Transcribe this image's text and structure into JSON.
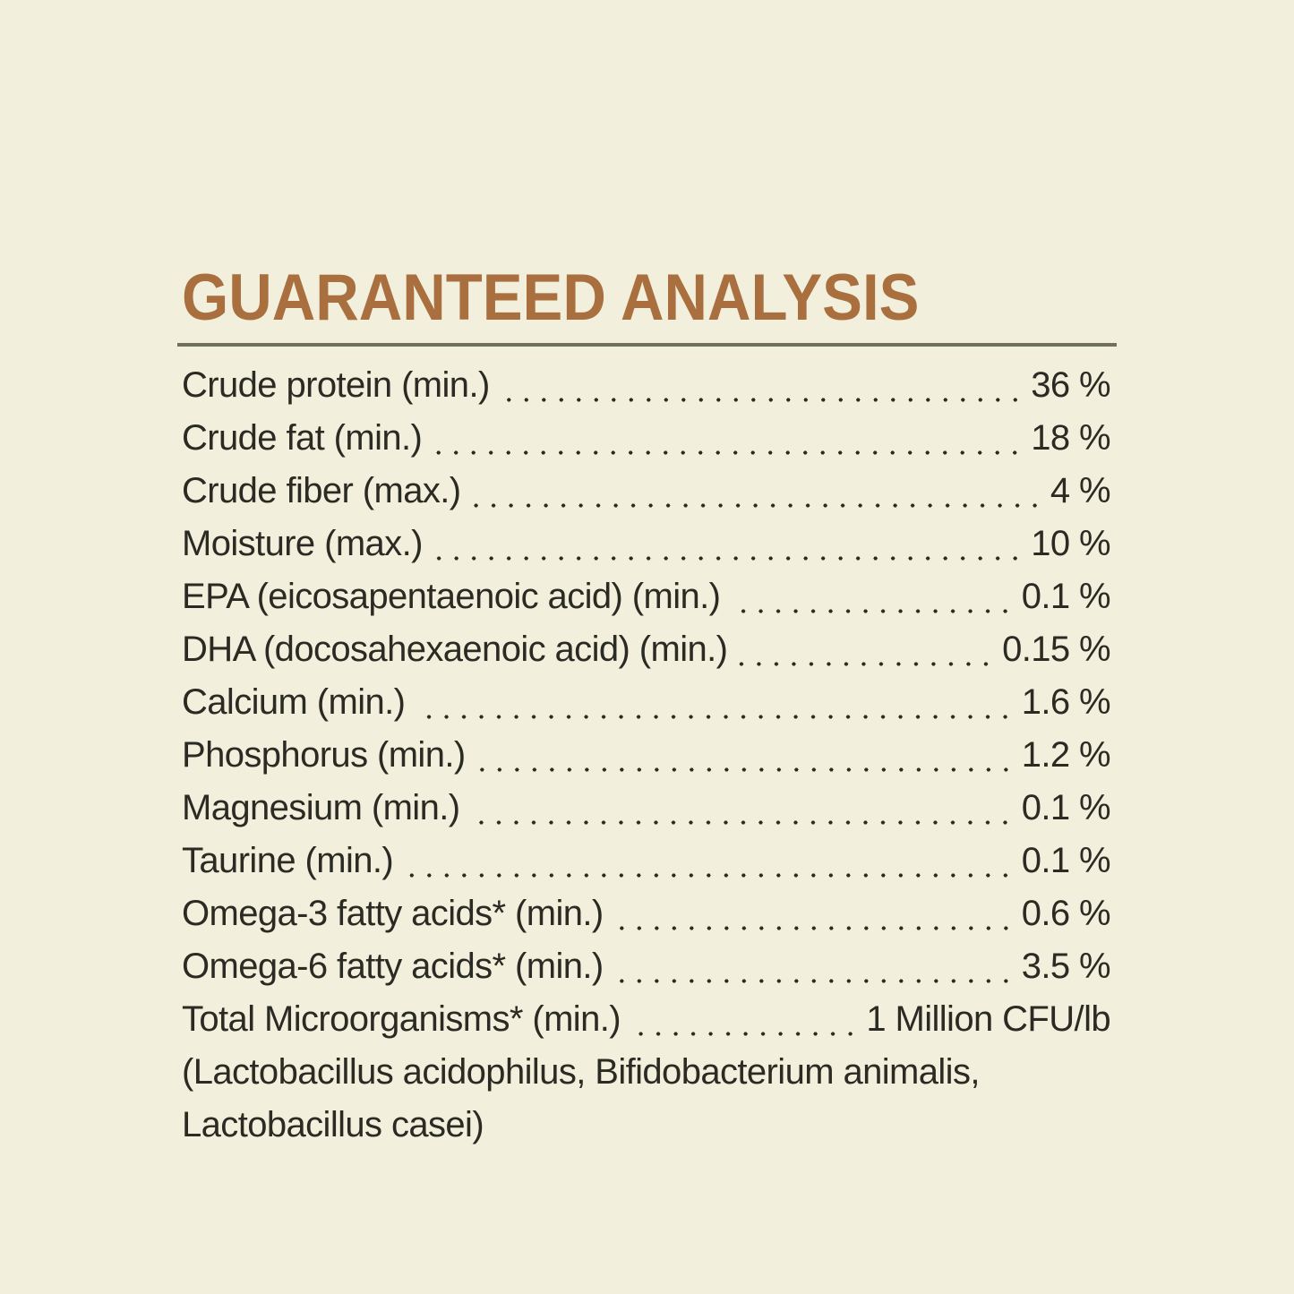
{
  "theme": {
    "background": "#f2f0dd",
    "text_color": "#2b2a23",
    "title_color": "#a96f3e",
    "divider_color": "#70705f"
  },
  "header": {
    "title": "GUARANTEED ANALYSIS"
  },
  "analysis": {
    "rows": [
      {
        "label": "Crude protein (min.)",
        "value": "36 %"
      },
      {
        "label": "Crude fat (min.)",
        "value": "18 %"
      },
      {
        "label": "Crude fiber (max.)",
        "value": "4 %"
      },
      {
        "label": "Moisture (max.)",
        "value": "10 %"
      },
      {
        "label": "EPA (eicosapentaenoic acid) (min.)",
        "value": "0.1 %"
      },
      {
        "label": "DHA (docosahexaenoic acid) (min.)",
        "value": "0.15 %"
      },
      {
        "label": "Calcium (min.)",
        "value": "1.6 %"
      },
      {
        "label": "Phosphorus (min.)",
        "value": "1.2 %"
      },
      {
        "label": "Magnesium (min.)",
        "value": "0.1 %"
      },
      {
        "label": "Taurine (min.)",
        "value": "0.1 %"
      },
      {
        "label": "Omega-3 fatty acids* (min.)",
        "value": "0.6 %"
      },
      {
        "label": "Omega-6 fatty acids* (min.)",
        "value": "3.5 %"
      },
      {
        "label": "Total Microorganisms* (min.)",
        "value": "1 Million CFU/lb"
      }
    ],
    "continuation_lines": [
      "(Lactobacillus acidophilus, Bifidobacterium animalis,",
      "Lactobacillus casei)"
    ]
  }
}
